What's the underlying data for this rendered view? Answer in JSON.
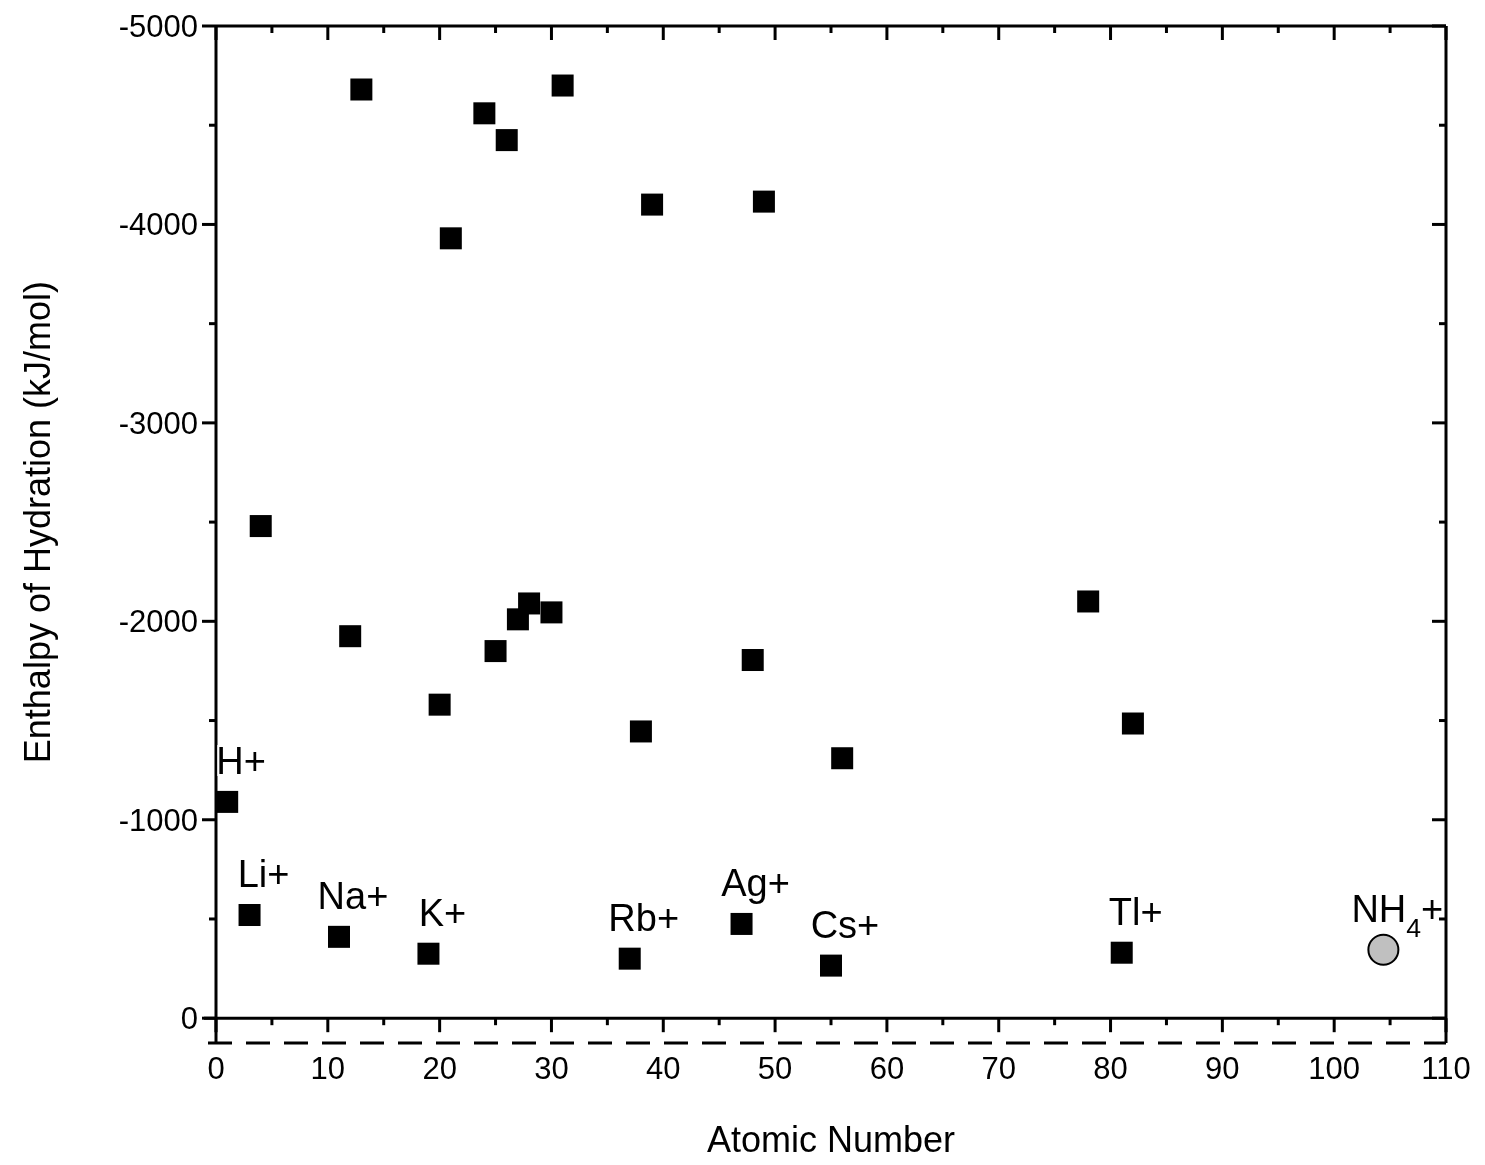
{
  "chart_data": {
    "type": "scatter",
    "xlabel": "Atomic Number",
    "ylabel": "Enthalpy of Hydration (kJ/mol)",
    "xlim": [
      0,
      110
    ],
    "ylim": [
      125,
      -5000
    ],
    "xticks": [
      0,
      {
        "value": 5,
        "label": null
      },
      10,
      {
        "value": 15,
        "label": null
      },
      20,
      {
        "value": 25,
        "label": null
      },
      30,
      {
        "value": 35,
        "label": null
      },
      40,
      {
        "value": 45,
        "label": null
      },
      50,
      {
        "value": 55,
        "label": null
      },
      60,
      {
        "value": 65,
        "label": null
      },
      70,
      {
        "value": 75,
        "label": null
      },
      80,
      {
        "value": 85,
        "label": null
      },
      90,
      {
        "value": 95,
        "label": null
      },
      100,
      {
        "value": 105,
        "label": null
      },
      110
    ],
    "yticks": [
      0,
      {
        "value": -500,
        "label": null
      },
      -1000,
      {
        "value": -1500,
        "label": null
      },
      -2000,
      {
        "value": -2500,
        "label": null
      },
      -3000,
      {
        "value": -3500,
        "label": null
      },
      -4000,
      {
        "value": -4500,
        "label": null
      },
      -5000
    ],
    "ref_lines": [
      {
        "axis": "y",
        "value": 125,
        "line_style": "dashed",
        "color": "#000000"
      }
    ],
    "series": [
      {
        "marker": "square",
        "color": "#000000",
        "x": [
          1,
          3,
          4,
          11,
          12,
          13,
          19,
          20,
          21,
          24,
          25,
          26,
          27,
          28,
          30,
          31,
          37,
          38,
          39,
          47,
          48,
          49,
          55,
          56,
          78,
          81,
          82
        ],
        "values": [
          -1090,
          -520,
          -2480,
          -410,
          -1925,
          -4680,
          -325,
          -1580,
          -3930,
          -4560,
          -1850,
          -4425,
          -2010,
          -2090,
          -2045,
          -4700,
          -300,
          -1445,
          -4100,
          -475,
          -1805,
          -4115,
          -265,
          -1310,
          -2100,
          -330,
          -1485
        ]
      },
      {
        "marker": "circle",
        "color": "#c0c0c0",
        "x": [
          104.4
        ],
        "values": [
          -345
        ]
      }
    ],
    "annotations": [
      {
        "text": "H+",
        "x": 1,
        "y": -1090
      },
      {
        "text": "Li+",
        "x": 3,
        "y": -520
      },
      {
        "text": "Na+",
        "x": 11,
        "y": -410
      },
      {
        "text": "K+",
        "x": 19,
        "y": -325
      },
      {
        "text": "Rb+",
        "x": 37,
        "y": -300
      },
      {
        "text": "Ag+",
        "x": 47,
        "y": -475
      },
      {
        "text": "Cs+",
        "x": 55,
        "y": -265
      },
      {
        "text": "Tl+",
        "x": 81,
        "y": -330
      },
      {
        "text": "NH$_{4}$+",
        "x": 104.4,
        "y": -345
      }
    ]
  }
}
